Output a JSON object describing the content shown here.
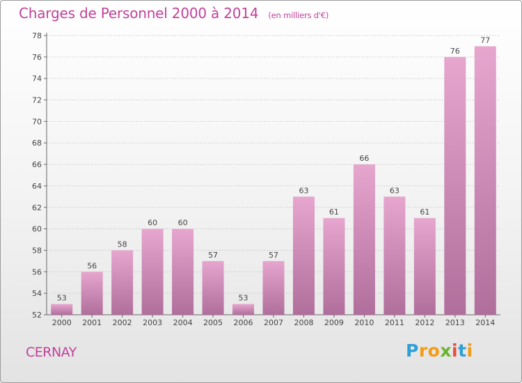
{
  "title": "Charges de Personnel 2000 à 2014",
  "subtitle": "(en milliers d'€)",
  "place": "CERNAY",
  "logo": {
    "letters": [
      "P",
      "r",
      "o",
      "x",
      "i",
      "t",
      "i"
    ],
    "colors": [
      "#2e9fd6",
      "#f39c12",
      "#f39c12",
      "#6ab42d",
      "#e74c3c",
      "#2e9fd6",
      "#f39c12"
    ]
  },
  "colors": {
    "accent": "#c2409a",
    "bar_top": "#e6a6ce",
    "bar_bottom": "#b06e9c"
  },
  "chart_data": {
    "type": "bar",
    "categories": [
      "2000",
      "2001",
      "2002",
      "2003",
      "2004",
      "2005",
      "2006",
      "2007",
      "2008",
      "2009",
      "2010",
      "2011",
      "2012",
      "2013",
      "2014"
    ],
    "values": [
      53,
      56,
      58,
      60,
      60,
      57,
      53,
      57,
      63,
      61,
      66,
      63,
      61,
      76,
      77
    ],
    "ylim": [
      52,
      78
    ],
    "yticks": [
      52,
      54,
      56,
      58,
      60,
      62,
      64,
      66,
      68,
      70,
      72,
      74,
      76,
      78
    ],
    "grid": true,
    "data_labels": true
  }
}
